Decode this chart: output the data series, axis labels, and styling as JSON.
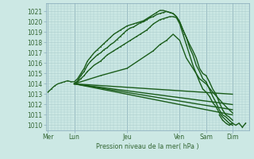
{
  "bg_color": "#cce8e4",
  "grid_color": "#aacccc",
  "line_color": "#1a5c1a",
  "xlabel": "Pression niveau de la mer( hPa )",
  "ylim": [
    1009.5,
    1021.8
  ],
  "yticks": [
    1010,
    1011,
    1012,
    1013,
    1014,
    1015,
    1016,
    1017,
    1018,
    1019,
    1020,
    1021
  ],
  "xtick_labels": [
    "Mer",
    "Lun",
    "Jeu",
    "Ven",
    "Sam",
    "Dim"
  ],
  "xtick_positions": [
    0,
    24,
    72,
    120,
    144,
    168
  ],
  "xlim": [
    -2,
    183
  ],
  "series": [
    {
      "x": [
        0,
        3,
        6,
        9,
        12,
        15,
        18,
        21,
        24,
        27,
        30,
        33,
        36,
        39,
        42,
        45,
        48,
        51,
        54,
        57,
        60,
        63,
        66,
        69,
        72,
        75,
        78,
        81,
        84,
        87,
        90,
        93,
        96,
        99,
        102,
        105,
        108,
        111,
        114,
        117,
        120,
        123,
        126,
        129,
        132,
        135,
        138,
        141,
        144,
        147,
        150,
        153,
        156,
        159,
        162,
        165,
        168
      ],
      "y": [
        1013.2,
        1013.5,
        1013.8,
        1014.0,
        1014.1,
        1014.2,
        1014.3,
        1014.2,
        1014.2,
        1014.5,
        1015.0,
        1015.5,
        1016.2,
        1016.6,
        1017.0,
        1017.3,
        1017.6,
        1017.9,
        1018.2,
        1018.5,
        1018.8,
        1019.0,
        1019.2,
        1019.4,
        1019.6,
        1019.7,
        1019.8,
        1019.9,
        1020.0,
        1020.1,
        1020.3,
        1020.5,
        1020.7,
        1020.9,
        1021.1,
        1021.1,
        1021.0,
        1020.9,
        1020.8,
        1020.5,
        1020.0,
        1019.2,
        1018.5,
        1017.8,
        1017.2,
        1016.5,
        1015.5,
        1015.0,
        1014.8,
        1014.2,
        1013.5,
        1013.0,
        1012.2,
        1011.5,
        1011.0,
        1010.8,
        1010.5
      ],
      "lw": 1.0,
      "marker": ".",
      "ms": 1.5,
      "color": "#1a5c1a"
    },
    {
      "x": [
        24,
        27,
        30,
        33,
        36,
        39,
        42,
        45,
        48,
        51,
        54,
        57,
        60,
        63,
        66,
        69,
        72,
        75,
        78,
        81,
        84,
        87,
        90,
        93,
        96,
        99,
        102,
        105,
        108,
        111,
        114,
        117,
        120,
        123,
        126,
        129,
        132,
        135,
        138,
        141,
        144,
        147,
        150,
        153,
        156,
        159,
        162,
        165,
        168
      ],
      "y": [
        1014.0,
        1014.3,
        1014.8,
        1015.2,
        1015.8,
        1016.2,
        1016.5,
        1016.8,
        1017.0,
        1017.3,
        1017.5,
        1017.8,
        1018.0,
        1018.3,
        1018.6,
        1018.9,
        1019.2,
        1019.4,
        1019.5,
        1019.7,
        1019.9,
        1020.0,
        1020.2,
        1020.4,
        1020.5,
        1020.7,
        1020.8,
        1020.9,
        1021.0,
        1020.9,
        1020.8,
        1020.5,
        1020.0,
        1019.2,
        1018.5,
        1017.5,
        1016.8,
        1015.8,
        1015.2,
        1014.5,
        1014.2,
        1013.5,
        1012.8,
        1012.2,
        1011.5,
        1011.0,
        1010.8,
        1010.5,
        1010.2
      ],
      "lw": 1.0,
      "marker": ".",
      "ms": 1.5,
      "color": "#1a5c1a"
    },
    {
      "x": [
        24,
        27,
        30,
        33,
        36,
        39,
        42,
        45,
        48,
        51,
        54,
        57,
        60,
        63,
        66,
        69,
        72,
        75,
        78,
        81,
        84,
        87,
        90,
        93,
        96,
        99,
        102,
        105,
        108,
        111,
        114,
        117,
        120,
        123,
        126,
        129,
        132,
        135,
        138,
        141,
        144,
        147,
        150,
        153,
        156,
        159,
        162,
        165,
        168
      ],
      "y": [
        1014.0,
        1014.2,
        1014.5,
        1014.8,
        1015.2,
        1015.5,
        1015.8,
        1016.0,
        1016.2,
        1016.5,
        1016.8,
        1017.0,
        1017.2,
        1017.4,
        1017.6,
        1017.8,
        1018.0,
        1018.2,
        1018.4,
        1018.6,
        1018.8,
        1019.0,
        1019.2,
        1019.5,
        1019.8,
        1020.0,
        1020.2,
        1020.3,
        1020.4,
        1020.5,
        1020.5,
        1020.4,
        1019.8,
        1018.8,
        1017.8,
        1016.8,
        1015.8,
        1015.0,
        1014.2,
        1013.5,
        1013.2,
        1012.8,
        1012.2,
        1011.8,
        1011.2,
        1010.8,
        1010.5,
        1010.2,
        1010.0
      ],
      "lw": 1.0,
      "marker": ".",
      "ms": 1.5,
      "color": "#1a5c1a"
    },
    {
      "x": [
        24,
        48,
        72,
        96,
        102,
        108,
        114,
        120,
        126,
        132,
        138,
        144,
        150,
        156,
        162,
        168
      ],
      "y": [
        1014.0,
        1014.8,
        1015.5,
        1017.2,
        1017.8,
        1018.2,
        1018.8,
        1018.2,
        1016.5,
        1015.5,
        1014.5,
        1014.0,
        1013.2,
        1012.5,
        1011.8,
        1011.2
      ],
      "lw": 1.0,
      "marker": ".",
      "ms": 1.5,
      "color": "#1a5c1a"
    },
    {
      "x": [
        24,
        168
      ],
      "y": [
        1014.0,
        1012.0
      ],
      "lw": 1.0,
      "marker": null,
      "ms": 0,
      "color": "#1a5c1a"
    },
    {
      "x": [
        24,
        168
      ],
      "y": [
        1014.0,
        1013.0
      ],
      "lw": 1.0,
      "marker": null,
      "ms": 0,
      "color": "#1a5c1a"
    },
    {
      "x": [
        24,
        168
      ],
      "y": [
        1014.0,
        1011.5
      ],
      "lw": 1.0,
      "marker": null,
      "ms": 0,
      "color": "#1a5c1a"
    },
    {
      "x": [
        24,
        168
      ],
      "y": [
        1014.0,
        1011.0
      ],
      "lw": 1.0,
      "marker": null,
      "ms": 0,
      "color": "#1a5c1a"
    },
    {
      "x": [
        156,
        159,
        162,
        165,
        168,
        171,
        174,
        177,
        180
      ],
      "y": [
        1011.0,
        1010.5,
        1010.2,
        1010.0,
        1010.2,
        1010.0,
        1010.2,
        1009.8,
        1010.2
      ],
      "lw": 1.0,
      "marker": ".",
      "ms": 2,
      "color": "#1a5c1a"
    }
  ],
  "vline_color": "#88aabb",
  "tick_color": "#336633"
}
